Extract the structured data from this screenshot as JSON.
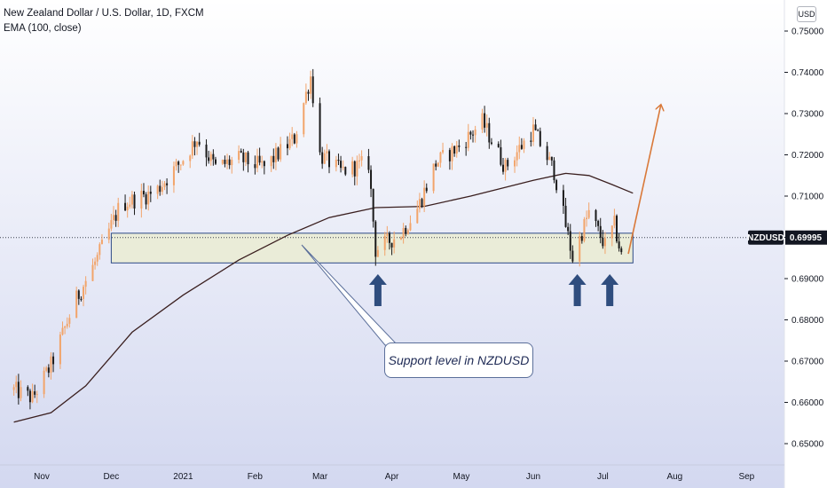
{
  "legend": {
    "title": "New Zealand Dollar / U.S. Dollar, 1D, FXCM",
    "indicator": "EMA (100, close)"
  },
  "currency_button": "USD",
  "price_tag": {
    "symbol": "NZDUSD",
    "price": "0.69995"
  },
  "callout": {
    "text": "Support level in NZDUSD"
  },
  "colors": {
    "background_top": "#ffffff",
    "background_bottom": "#d3d8f0",
    "bull_candle": "#f2a46a",
    "bear_candle": "#1a1a1a",
    "ema_line": "#3a1f1f",
    "support_zone_fill": "#eaecd2",
    "support_zone_border": "#2d4a86",
    "arrow": "#2f4d7e",
    "projection": "#d9793a"
  },
  "chart_data": {
    "type": "candlestick",
    "title": "New Zealand Dollar / U.S. Dollar, 1D, FXCM",
    "xlabel": "",
    "ylabel": "",
    "x_ticks": [
      "Nov",
      "Dec",
      "2021",
      "Feb",
      "Mar",
      "Apr",
      "May",
      "Jun",
      "Jul",
      "Aug",
      "Sep"
    ],
    "y_ticks": [
      "0.75000",
      "0.74000",
      "0.73000",
      "0.72000",
      "0.71000",
      "0.70000",
      "0.69000",
      "0.68000",
      "0.67000",
      "0.66000",
      "0.65000"
    ],
    "ylim": [
      0.6465,
      0.7528
    ],
    "current_price": 0.69995,
    "close_path": [
      {
        "date": "2020-10-20",
        "close": 0.663
      },
      {
        "date": "2020-10-28",
        "close": 0.661
      },
      {
        "date": "2020-11-05",
        "close": 0.669
      },
      {
        "date": "2020-11-15",
        "close": 0.684
      },
      {
        "date": "2020-11-25",
        "close": 0.695
      },
      {
        "date": "2020-12-05",
        "close": 0.708
      },
      {
        "date": "2020-12-20",
        "close": 0.711
      },
      {
        "date": "2021-01-01",
        "close": 0.719
      },
      {
        "date": "2021-01-07",
        "close": 0.724
      },
      {
        "date": "2021-01-15",
        "close": 0.717
      },
      {
        "date": "2021-01-25",
        "close": 0.719
      },
      {
        "date": "2021-02-05",
        "close": 0.717
      },
      {
        "date": "2021-02-18",
        "close": 0.724
      },
      {
        "date": "2021-02-25",
        "close": 0.739
      },
      {
        "date": "2021-03-01",
        "close": 0.72
      },
      {
        "date": "2021-03-10",
        "close": 0.716
      },
      {
        "date": "2021-03-22",
        "close": 0.718
      },
      {
        "date": "2021-03-25",
        "close": 0.697
      },
      {
        "date": "2021-04-05",
        "close": 0.701
      },
      {
        "date": "2021-04-12",
        "close": 0.707
      },
      {
        "date": "2021-04-20",
        "close": 0.718
      },
      {
        "date": "2021-04-30",
        "close": 0.722
      },
      {
        "date": "2021-05-10",
        "close": 0.728
      },
      {
        "date": "2021-05-20",
        "close": 0.717
      },
      {
        "date": "2021-06-01",
        "close": 0.726
      },
      {
        "date": "2021-06-10",
        "close": 0.716
      },
      {
        "date": "2021-06-18",
        "close": 0.695
      },
      {
        "date": "2021-06-25",
        "close": 0.706
      },
      {
        "date": "2021-07-02",
        "close": 0.698
      },
      {
        "date": "2021-07-06",
        "close": 0.703
      },
      {
        "date": "2021-07-09",
        "close": 0.6955
      },
      {
        "date": "2021-07-11",
        "close": 0.6995
      }
    ],
    "ema": [
      {
        "date": "2020-10-20",
        "value": 0.6552
      },
      {
        "date": "2020-11-05",
        "value": 0.6575
      },
      {
        "date": "2020-11-20",
        "value": 0.664
      },
      {
        "date": "2020-12-10",
        "value": 0.677
      },
      {
        "date": "2021-01-01",
        "value": 0.686
      },
      {
        "date": "2021-01-25",
        "value": 0.6945
      },
      {
        "date": "2021-02-15",
        "value": 0.7005
      },
      {
        "date": "2021-03-05",
        "value": 0.7048
      },
      {
        "date": "2021-03-25",
        "value": 0.7072
      },
      {
        "date": "2021-04-15",
        "value": 0.7075
      },
      {
        "date": "2021-05-05",
        "value": 0.71
      },
      {
        "date": "2021-06-01",
        "value": 0.7138
      },
      {
        "date": "2021-06-15",
        "value": 0.7155
      },
      {
        "date": "2021-06-25",
        "value": 0.715
      },
      {
        "date": "2021-07-05",
        "value": 0.7128
      },
      {
        "date": "2021-07-14",
        "value": 0.7107
      }
    ],
    "support_zone": {
      "start": "2020-12-01",
      "end": "2021-07-14",
      "low": 0.6938,
      "high": 0.701
    },
    "bounce_markers": [
      "2021-03-26",
      "2021-06-20",
      "2021-07-04"
    ],
    "projection": {
      "from": {
        "date": "2021-07-12",
        "price": 0.696
      },
      "to": {
        "date": "2021-07-26",
        "price": 0.732
      }
    },
    "grid": false,
    "legend_position": "top-left"
  }
}
